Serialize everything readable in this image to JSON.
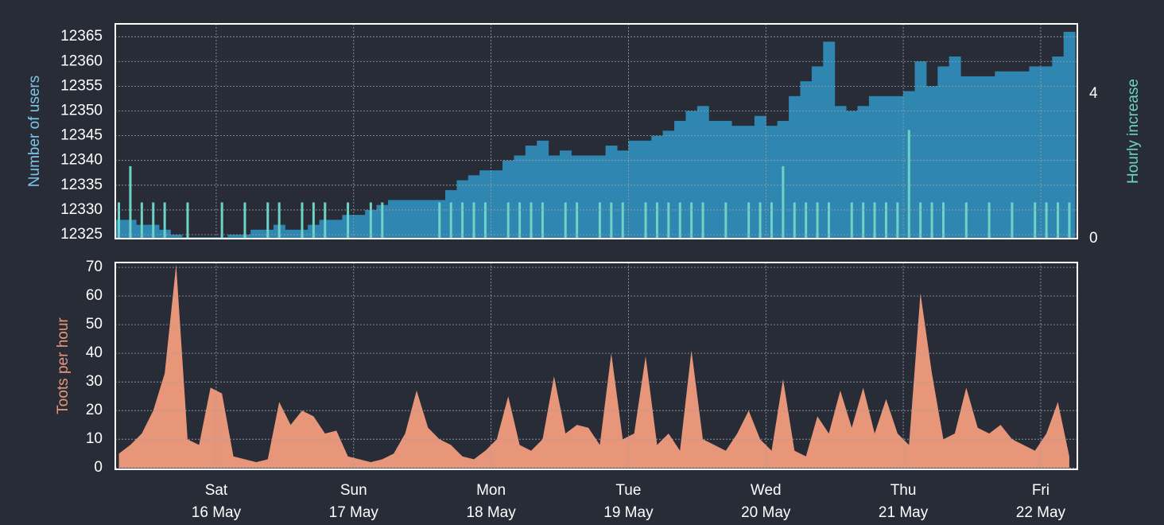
{
  "chart_data": [
    {
      "type": "bar",
      "ylabel": "Number of users",
      "y2label": "Hourly increase",
      "x": [
        7,
        9,
        11,
        13,
        15,
        17,
        19,
        21,
        23,
        25,
        27,
        29,
        31,
        33,
        35,
        37,
        39,
        41,
        43,
        45,
        47,
        49,
        51,
        53,
        55,
        57,
        59,
        61,
        63,
        65,
        67,
        69,
        71,
        73,
        75,
        77,
        79,
        81,
        83,
        85,
        87,
        89,
        91,
        93,
        95,
        97,
        99,
        101,
        103,
        105,
        107,
        109,
        111,
        113,
        115,
        117,
        119,
        121,
        123,
        125,
        127,
        129,
        131,
        133,
        135,
        137,
        139,
        141,
        143,
        145,
        147,
        149,
        151,
        153,
        155,
        157,
        159,
        161,
        163,
        165,
        167,
        169,
        171,
        173
      ],
      "xlim": [
        6.37,
        174.4
      ],
      "ylim": [
        12324.2,
        12367.6
      ],
      "yticks": [
        12325,
        12330,
        12335,
        12340,
        12345,
        12350,
        12355,
        12360,
        12365
      ],
      "y2lim": [
        0,
        5.93
      ],
      "y2ticks": [
        0,
        4
      ],
      "grid": true,
      "series": [
        {
          "name": "Number of users",
          "color": "#2f86b0",
          "values": [
            12328,
            12328,
            12327,
            12327,
            12326,
            12325,
            12324.5,
            12324.5,
            12324.5,
            12324.5,
            12325,
            12325,
            12326,
            12326,
            12327,
            12326,
            12326,
            12327,
            12328,
            12328,
            12329,
            12329,
            12330,
            12331,
            12332,
            12332,
            12332,
            12332,
            12332,
            12334,
            12336,
            12337,
            12338,
            12338,
            12340,
            12341,
            12343,
            12344,
            12341,
            12342,
            12341,
            12341,
            12341,
            12343,
            12342,
            12344,
            12344,
            12345,
            12346,
            12348,
            12350,
            12351,
            12348,
            12348,
            12347,
            12347,
            12349,
            12347,
            12348,
            12353,
            12356,
            12359,
            12364,
            12351,
            12350,
            12351,
            12353,
            12353,
            12353,
            12354,
            12360,
            12355,
            12359,
            12361,
            12357,
            12357,
            12357,
            12358,
            12358,
            12358,
            12359,
            12359,
            12361,
            12366
          ]
        },
        {
          "name": "Hourly increase",
          "color": "#6dd3c6",
          "axis": "y2",
          "values": [
            1,
            2,
            1,
            1,
            1,
            0,
            1,
            0,
            0,
            1,
            0,
            1,
            0,
            1,
            1,
            0,
            1,
            1,
            1,
            0,
            1,
            0,
            1,
            1,
            0,
            0,
            0,
            0,
            1,
            1,
            1,
            1,
            1,
            0,
            1,
            1,
            1,
            1,
            0,
            1,
            1,
            0,
            1,
            1,
            1,
            0,
            1,
            1,
            1,
            1,
            1,
            1,
            0,
            1,
            0,
            1,
            1,
            1,
            2,
            1,
            1,
            1,
            1,
            0,
            1,
            1,
            1,
            1,
            1,
            3,
            1,
            1,
            1,
            0,
            1,
            0,
            1,
            0,
            1,
            0,
            1,
            1,
            1,
            1
          ]
        }
      ]
    },
    {
      "type": "area",
      "ylabel": "Toots per hour",
      "color": "#e8967a",
      "x": [
        7,
        9,
        11,
        13,
        15,
        17,
        19,
        21,
        23,
        25,
        27,
        29,
        31,
        33,
        35,
        37,
        39,
        41,
        43,
        45,
        47,
        49,
        51,
        53,
        55,
        57,
        59,
        61,
        63,
        65,
        67,
        69,
        71,
        73,
        75,
        77,
        79,
        81,
        83,
        85,
        87,
        89,
        91,
        93,
        95,
        97,
        99,
        101,
        103,
        105,
        107,
        109,
        111,
        113,
        115,
        117,
        119,
        121,
        123,
        125,
        127,
        129,
        131,
        133,
        135,
        137,
        139,
        141,
        143,
        145,
        147,
        149,
        151,
        153,
        155,
        157,
        159,
        161,
        163,
        165,
        167,
        169,
        171,
        173
      ],
      "values": [
        5,
        8,
        12,
        20,
        33,
        71,
        10,
        8,
        28,
        26,
        4,
        3,
        2,
        3,
        23,
        15,
        20,
        18,
        12,
        13,
        4,
        3,
        2,
        3,
        5,
        12,
        27,
        14,
        10,
        8,
        4,
        3,
        6,
        10,
        25,
        8,
        6,
        10,
        32,
        12,
        15,
        14,
        8,
        40,
        10,
        12,
        39,
        8,
        12,
        6,
        41,
        10,
        8,
        6,
        12,
        20,
        10,
        6,
        31,
        6,
        4,
        18,
        12,
        27,
        14,
        28,
        12,
        24,
        12,
        8,
        61,
        33,
        10,
        12,
        28,
        14,
        12,
        15,
        10,
        8,
        6,
        12,
        23,
        4
      ],
      "xlim": [
        6.37,
        174.4
      ],
      "xticks": [
        {
          "value": 24,
          "label": [
            "Sat",
            "16 May"
          ]
        },
        {
          "value": 48,
          "label": [
            "Sun",
            "17 May"
          ]
        },
        {
          "value": 72,
          "label": [
            "Mon",
            "18 May"
          ]
        },
        {
          "value": 96,
          "label": [
            "Tue",
            "19 May"
          ]
        },
        {
          "value": 120,
          "label": [
            "Wed",
            "20 May"
          ]
        },
        {
          "value": 144,
          "label": [
            "Thu",
            "21 May"
          ]
        },
        {
          "value": 168,
          "label": [
            "Fri",
            "22 May"
          ]
        }
      ],
      "ylim": [
        -0.5,
        71.7
      ],
      "yticks": [
        0,
        10,
        20,
        30,
        40,
        50,
        60,
        70
      ],
      "grid": true
    }
  ]
}
